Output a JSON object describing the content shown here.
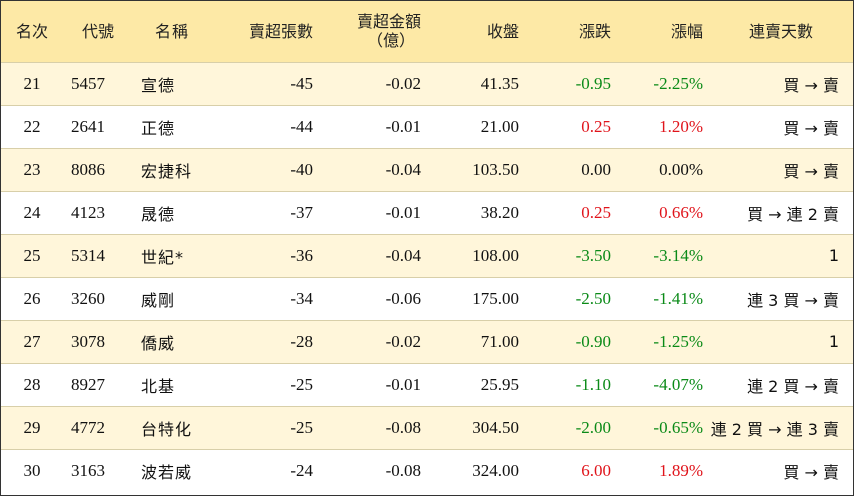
{
  "headers": {
    "rank": "名次",
    "code": "代號",
    "name": "名稱",
    "lots": "賣超張數",
    "amount_line1": "賣超金額",
    "amount_line2": "（億）",
    "close": "收盤",
    "change": "漲跌",
    "pct": "漲幅",
    "days": "連賣天數"
  },
  "colors": {
    "header_bg": "#fde9a6",
    "alt_row_bg": "#fff6da",
    "up": "#e0141b",
    "down": "#0a8a17"
  },
  "rows": [
    {
      "rank": "21",
      "code": "5457",
      "name": "宣德",
      "lots": "-45",
      "amount": "-0.02",
      "close": "41.35",
      "change": "-0.95",
      "pct": "-2.25%",
      "trend": "down",
      "days": "買 → 賣"
    },
    {
      "rank": "22",
      "code": "2641",
      "name": "正德",
      "lots": "-44",
      "amount": "-0.01",
      "close": "21.00",
      "change": "0.25",
      "pct": "1.20%",
      "trend": "up",
      "days": "買 → 賣"
    },
    {
      "rank": "23",
      "code": "8086",
      "name": "宏捷科",
      "lots": "-40",
      "amount": "-0.04",
      "close": "103.50",
      "change": "0.00",
      "pct": "0.00%",
      "trend": "flat",
      "days": "買 → 賣"
    },
    {
      "rank": "24",
      "code": "4123",
      "name": "晟德",
      "lots": "-37",
      "amount": "-0.01",
      "close": "38.20",
      "change": "0.25",
      "pct": "0.66%",
      "trend": "up",
      "days": "買 → 連 2 賣"
    },
    {
      "rank": "25",
      "code": "5314",
      "name": "世紀*",
      "lots": "-36",
      "amount": "-0.04",
      "close": "108.00",
      "change": "-3.50",
      "pct": "-3.14%",
      "trend": "down",
      "days": "1"
    },
    {
      "rank": "26",
      "code": "3260",
      "name": "威剛",
      "lots": "-34",
      "amount": "-0.06",
      "close": "175.00",
      "change": "-2.50",
      "pct": "-1.41%",
      "trend": "down",
      "days": "連 3 買 → 賣"
    },
    {
      "rank": "27",
      "code": "3078",
      "name": "僑威",
      "lots": "-28",
      "amount": "-0.02",
      "close": "71.00",
      "change": "-0.90",
      "pct": "-1.25%",
      "trend": "down",
      "days": "1"
    },
    {
      "rank": "28",
      "code": "8927",
      "name": "北基",
      "lots": "-25",
      "amount": "-0.01",
      "close": "25.95",
      "change": "-1.10",
      "pct": "-4.07%",
      "trend": "down",
      "days": "連 2 買 → 賣"
    },
    {
      "rank": "29",
      "code": "4772",
      "name": "台特化",
      "lots": "-25",
      "amount": "-0.08",
      "close": "304.50",
      "change": "-2.00",
      "pct": "-0.65%",
      "trend": "down",
      "days": "連 2 買 → 連 3 賣"
    },
    {
      "rank": "30",
      "code": "3163",
      "name": "波若威",
      "lots": "-24",
      "amount": "-0.08",
      "close": "324.00",
      "change": "6.00",
      "pct": "1.89%",
      "trend": "up",
      "days": "買 → 賣"
    }
  ]
}
